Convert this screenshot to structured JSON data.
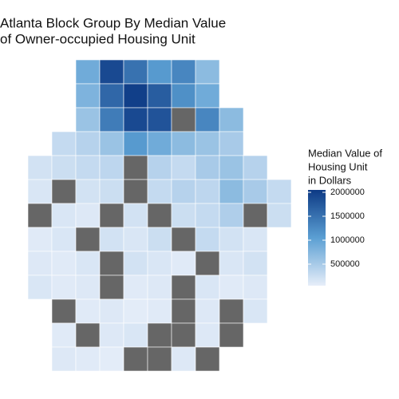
{
  "chart_data": {
    "type": "choropleth",
    "title": [
      "Atlanta Block Group By Median Value",
      "of Owner-occupied Housing Unit"
    ],
    "legend_title": [
      "Median Value of",
      "Housing Unit",
      "in Dollars"
    ],
    "scale_limits": [
      50000,
      2050000
    ],
    "legend_ticks": [
      500000,
      1000000,
      1500000,
      2000000
    ],
    "colors": [
      "#e7eef9",
      "#5b9fd3",
      "#0d3a85"
    ],
    "na_color": "#666666",
    "values": [
      [
        900000,
        1900000,
        1500000,
        1100000,
        1300000,
        700000
      ],
      [
        800000,
        1600000,
        2000000,
        1700000,
        1200000,
        900000
      ],
      [
        600000,
        1400000,
        1900000,
        1800000,
        null,
        1300000,
        700000
      ],
      [
        300000,
        400000,
        600000,
        1100000,
        900000,
        700000,
        600000,
        500000
      ],
      [
        200000,
        250000,
        300000,
        350000,
        null,
        400000,
        300000,
        500000,
        600000,
        400000
      ],
      [
        150000,
        null,
        200000,
        250000,
        null,
        300000,
        400000,
        350000,
        700000,
        500000,
        300000
      ],
      [
        null,
        150000,
        120000,
        null,
        200000,
        null,
        250000,
        300000,
        450000,
        null,
        250000
      ],
      [
        100000,
        150000,
        null,
        200000,
        150000,
        250000,
        null,
        300000,
        200000,
        150000
      ],
      [
        120000,
        100000,
        150000,
        null,
        200000,
        150000,
        100000,
        null,
        150000,
        200000
      ],
      [
        150000,
        100000,
        120000,
        null,
        100000,
        120000,
        null,
        150000,
        100000,
        120000
      ],
      [
        null,
        100000,
        120000,
        80000,
        100000,
        null,
        120000,
        null,
        150000
      ],
      [
        100000,
        null,
        120000,
        150000,
        null,
        null,
        120000,
        null
      ],
      [
        120000,
        100000,
        80000,
        null,
        null,
        120000,
        null
      ]
    ]
  }
}
